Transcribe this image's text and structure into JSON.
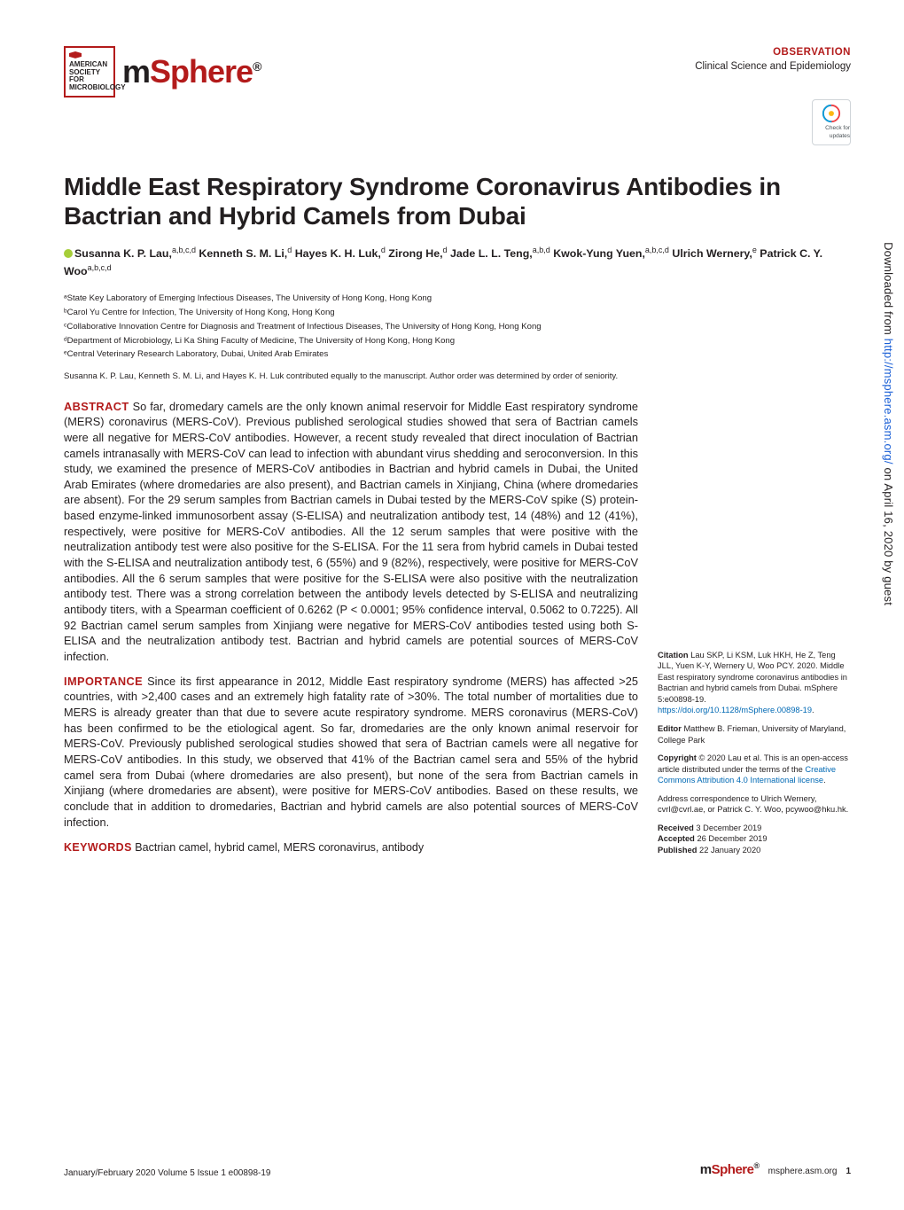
{
  "header": {
    "society_lines": [
      "AMERICAN",
      "SOCIETY FOR",
      "MICROBIOLOGY"
    ],
    "journal_m": "m",
    "journal_sphere": "Sphere",
    "article_type": "OBSERVATION",
    "section": "Clinical Science and Epidemiology",
    "crossmark": "Check for updates"
  },
  "title": "Middle East Respiratory Syndrome Coronavirus Antibodies in Bactrian and Hybrid Camels from Dubai",
  "authors_html": "Susanna K. P. Lau,<sup>a,b,c,d</sup> Kenneth S. M. Li,<sup>d</sup> Hayes K. H. Luk,<sup>d</sup> Zirong He,<sup>d</sup> Jade L. L. Teng,<sup>a,b,d</sup> Kwok-Yung Yuen,<sup>a,b,c,d</sup> Ulrich Wernery,<sup>e</sup> Patrick C. Y. Woo<sup>a,b,c,d</sup>",
  "affiliations": [
    "ᵃState Key Laboratory of Emerging Infectious Diseases, The University of Hong Kong, Hong Kong",
    "ᵇCarol Yu Centre for Infection, The University of Hong Kong, Hong Kong",
    "ᶜCollaborative Innovation Centre for Diagnosis and Treatment of Infectious Diseases, The University of Hong Kong, Hong Kong",
    "ᵈDepartment of Microbiology, Li Ka Shing Faculty of Medicine, The University of Hong Kong, Hong Kong",
    "ᵉCentral Veterinary Research Laboratory, Dubai, United Arab Emirates"
  ],
  "contrib_note": "Susanna K. P. Lau, Kenneth S. M. Li, and Hayes K. H. Luk contributed equally to the manuscript. Author order was determined by order of seniority.",
  "abstract": {
    "label": "ABSTRACT",
    "text": " So far, dromedary camels are the only known animal reservoir for Middle East respiratory syndrome (MERS) coronavirus (MERS-CoV). Previous published serological studies showed that sera of Bactrian camels were all negative for MERS-CoV antibodies. However, a recent study revealed that direct inoculation of Bactrian camels intranasally with MERS-CoV can lead to infection with abundant virus shedding and seroconversion. In this study, we examined the presence of MERS-CoV antibodies in Bactrian and hybrid camels in Dubai, the United Arab Emirates (where dromedaries are also present), and Bactrian camels in Xinjiang, China (where dromedaries are absent). For the 29 serum samples from Bactrian camels in Dubai tested by the MERS-CoV spike (S) protein-based enzyme-linked immunosorbent assay (S-ELISA) and neutralization antibody test, 14 (48%) and 12 (41%), respectively, were positive for MERS-CoV antibodies. All the 12 serum samples that were positive with the neutralization antibody test were also positive for the S-ELISA. For the 11 sera from hybrid camels in Dubai tested with the S-ELISA and neutralization antibody test, 6 (55%) and 9 (82%), respectively, were positive for MERS-CoV antibodies. All the 6 serum samples that were positive for the S-ELISA were also positive with the neutralization antibody test. There was a strong correlation between the antibody levels detected by S-ELISA and neutralizing antibody titers, with a Spearman coefficient of 0.6262 (P < 0.0001; 95% confidence interval, 0.5062 to 0.7225). All 92 Bactrian camel serum samples from Xinjiang were negative for MERS-CoV antibodies tested using both S-ELISA and the neutralization antibody test. Bactrian and hybrid camels are potential sources of MERS-CoV infection."
  },
  "importance": {
    "label": "IMPORTANCE",
    "text": " Since its first appearance in 2012, Middle East respiratory syndrome (MERS) has affected >25 countries, with >2,400 cases and an extremely high fatality rate of >30%. The total number of mortalities due to MERS is already greater than that due to severe acute respiratory syndrome. MERS coronavirus (MERS-CoV) has been confirmed to be the etiological agent. So far, dromedaries are the only known animal reservoir for MERS-CoV. Previously published serological studies showed that sera of Bactrian camels were all negative for MERS-CoV antibodies. In this study, we observed that 41% of the Bactrian camel sera and 55% of the hybrid camel sera from Dubai (where dromedaries are also present), but none of the sera from Bactrian camels in Xinjiang (where dromedaries are absent), were positive for MERS-CoV antibodies. Based on these results, we conclude that in addition to dromedaries, Bactrian and hybrid camels are also potential sources of MERS-CoV infection."
  },
  "keywords": {
    "label": "KEYWORDS",
    "text": " Bactrian camel, hybrid camel, MERS coronavirus, antibody"
  },
  "sidebar": {
    "citation_label": "Citation",
    "citation_text": " Lau SKP, Li KSM, Luk HKH, He Z, Teng JLL, Yuen K-Y, Wernery U, Woo PCY. 2020. Middle East respiratory syndrome coronavirus antibodies in Bactrian and hybrid camels from Dubai. mSphere 5:e00898-19. ",
    "doi": "https://doi.org/10.1128/mSphere.00898-19",
    "editor_label": "Editor",
    "editor_text": " Matthew B. Frieman, University of Maryland, College Park",
    "copyright_label": "Copyright",
    "copyright_text": " © 2020 Lau et al. This is an open-access article distributed under the terms of the ",
    "cc_link": "Creative Commons Attribution 4.0 International license",
    "correspondence": "Address correspondence to Ulrich Wernery, cvrl@cvrl.ae, or Patrick C. Y. Woo, pcywoo@hku.hk.",
    "received_label": "Received",
    "received_text": " 3 December 2019",
    "accepted_label": "Accepted",
    "accepted_text": " 26 December 2019",
    "published_label": "Published",
    "published_text": " 22 January 2020"
  },
  "watermark": {
    "prefix": "Downloaded from ",
    "url": "http://msphere.asm.org/",
    "suffix": " on April 16, 2020 by guest"
  },
  "footer": {
    "issue": "January/February 2020   Volume 5   Issue 1   e00898-19",
    "site": "msphere.asm.org",
    "page": "1"
  },
  "colors": {
    "brand_red": "#b31b1b",
    "link_blue": "#0069b4",
    "text": "#231f20"
  }
}
